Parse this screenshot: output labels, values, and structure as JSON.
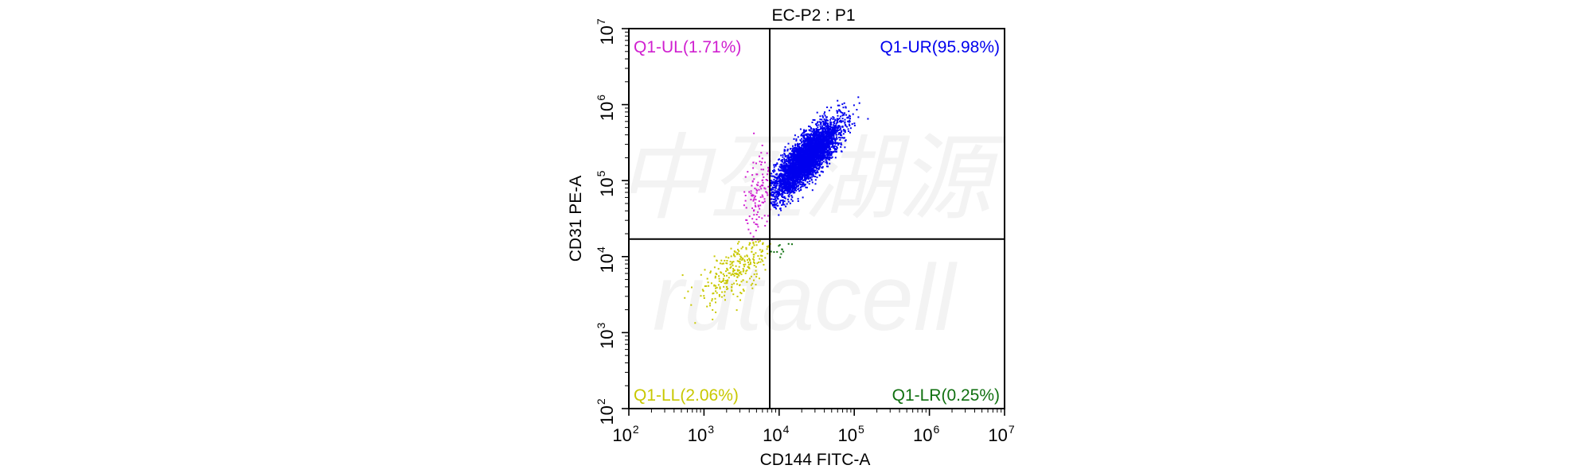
{
  "chart_data": {
    "type": "scatter",
    "title": "EC-P2 : P1",
    "xlabel": "CD144 FITC-A",
    "ylabel": "CD31 PE-A",
    "x_scale": "log",
    "y_scale": "log",
    "xlim": [
      100,
      10000000
    ],
    "ylim": [
      100,
      10000000
    ],
    "ticks": [
      {
        "base": "10",
        "exp": "2",
        "value": 100
      },
      {
        "base": "10",
        "exp": "3",
        "value": 1000
      },
      {
        "base": "10",
        "exp": "4",
        "value": 10000
      },
      {
        "base": "10",
        "exp": "5",
        "value": 100000
      },
      {
        "base": "10",
        "exp": "6",
        "value": 1000000
      },
      {
        "base": "10",
        "exp": "7",
        "value": 10000000
      }
    ],
    "gate": {
      "x": 7500,
      "y": 17000
    },
    "grid": false,
    "quadrants": [
      {
        "name": "Q1-UL",
        "label": "Q1-UL(1.71%)",
        "percent": 1.71,
        "color": "#d020d0",
        "corner": "top-left"
      },
      {
        "name": "Q1-UR",
        "label": "Q1-UR(95.98%)",
        "percent": 95.98,
        "color": "#0000ee",
        "corner": "top-right"
      },
      {
        "name": "Q1-LL",
        "label": "Q1-LL(2.06%)",
        "percent": 2.06,
        "color": "#c8c800",
        "corner": "bottom-left"
      },
      {
        "name": "Q1-LR",
        "label": "Q1-LR(0.25%)",
        "percent": 0.25,
        "color": "#107010",
        "corner": "bottom-right"
      }
    ],
    "populations": [
      {
        "quadrant": "Q1-UR",
        "center_log": [
          4.35,
          5.3
        ],
        "spread_log": [
          0.22,
          0.24
        ],
        "correlation": 0.8,
        "events": 4200
      },
      {
        "quadrant": "Q1-UL",
        "center_log": [
          3.72,
          4.85
        ],
        "spread_log": [
          0.1,
          0.3
        ],
        "correlation": 0.4,
        "events": 120
      },
      {
        "quadrant": "Q1-LL",
        "center_log": [
          3.45,
          3.85
        ],
        "spread_log": [
          0.25,
          0.25
        ],
        "correlation": 0.7,
        "events": 280
      },
      {
        "quadrant": "Q1-LR",
        "center_log": [
          4.0,
          4.1
        ],
        "spread_log": [
          0.08,
          0.05
        ],
        "correlation": 0.0,
        "events": 12
      }
    ]
  },
  "watermark": {
    "line1": "中盈湖源",
    "line2": "rutacell"
  }
}
